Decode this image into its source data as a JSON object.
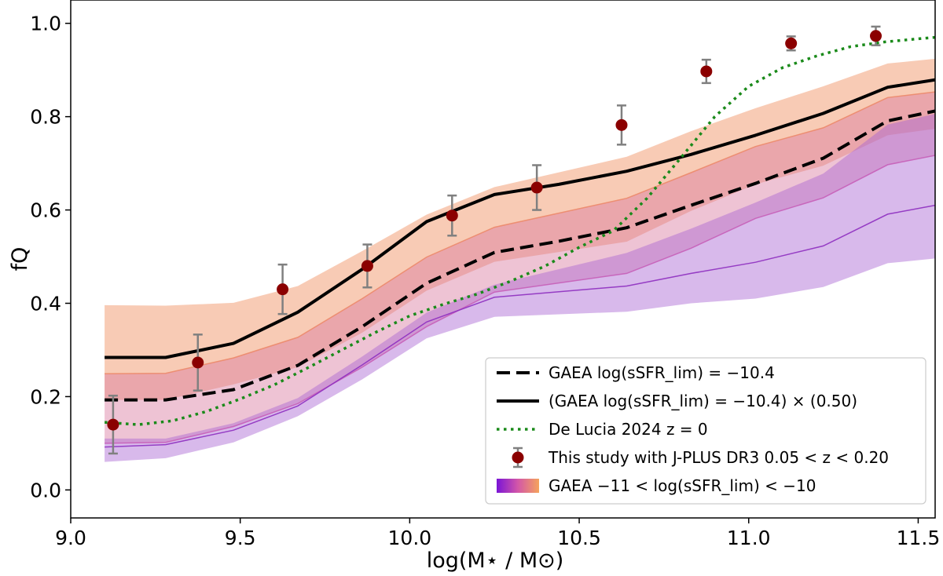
{
  "chart_data": {
    "type": "line",
    "xlabel": "log(M⋆ / M⊙)",
    "ylabel": "fQ",
    "xlim": [
      9.0,
      11.55
    ],
    "ylim": [
      -0.06,
      1.05
    ],
    "xticks": [
      "9.0",
      "9.5",
      "10.0",
      "10.5",
      "11.0",
      "11.5"
    ],
    "xtick_values": [
      9.0,
      9.5,
      10.0,
      10.5,
      11.0,
      11.5
    ],
    "yticks": [
      "0.0",
      "0.2",
      "0.4",
      "0.6",
      "0.8",
      "1.0"
    ],
    "ytick_values": [
      0.0,
      0.2,
      0.4,
      0.6,
      0.8,
      1.0
    ],
    "grid": false,
    "legend_position": "lower-right",
    "bands": [
      {
        "name": "orange",
        "color": "#f08c5a",
        "opacity": 0.45,
        "x": [
          9.1,
          9.28,
          9.48,
          9.67,
          9.86,
          10.05,
          10.25,
          10.64,
          10.83,
          11.02,
          11.22,
          11.41,
          11.55
        ],
        "upper": [
          0.396,
          0.395,
          0.401,
          0.437,
          0.512,
          0.59,
          0.649,
          0.714,
          0.769,
          0.818,
          0.865,
          0.914,
          0.924
        ],
        "lower": [
          0.193,
          0.193,
          0.226,
          0.263,
          0.337,
          0.427,
          0.489,
          0.532,
          0.598,
          0.655,
          0.695,
          0.76,
          0.774
        ]
      },
      {
        "name": "pink",
        "color": "#d97aa0",
        "opacity": 0.45,
        "x": [
          9.1,
          9.28,
          9.48,
          9.67,
          9.86,
          10.05,
          10.25,
          10.64,
          10.83,
          11.02,
          11.22,
          11.41,
          11.55
        ],
        "upper": [
          0.249,
          0.25,
          0.283,
          0.327,
          0.41,
          0.499,
          0.563,
          0.625,
          0.68,
          0.736,
          0.776,
          0.841,
          0.853
        ],
        "lower": [
          0.1,
          0.102,
          0.136,
          0.185,
          0.263,
          0.35,
          0.424,
          0.464,
          0.518,
          0.582,
          0.626,
          0.697,
          0.717
        ]
      },
      {
        "name": "purple",
        "color": "#a864d2",
        "opacity": 0.45,
        "x": [
          9.1,
          9.28,
          9.48,
          9.67,
          9.86,
          10.05,
          10.25,
          10.64,
          10.83,
          11.02,
          11.22,
          11.41,
          11.55
        ],
        "upper": [
          0.11,
          0.11,
          0.143,
          0.197,
          0.286,
          0.38,
          0.44,
          0.508,
          0.56,
          0.616,
          0.678,
          0.783,
          0.806
        ],
        "lower": [
          0.06,
          0.068,
          0.102,
          0.158,
          0.237,
          0.325,
          0.371,
          0.382,
          0.4,
          0.41,
          0.435,
          0.486,
          0.496
        ]
      }
    ],
    "band_lines": [
      {
        "color": "#ec8a6a",
        "x": [
          9.1,
          9.28,
          9.48,
          9.67,
          9.86,
          10.05,
          10.25,
          10.64,
          10.83,
          11.02,
          11.22,
          11.41,
          11.55
        ],
        "y": [
          0.249,
          0.25,
          0.283,
          0.327,
          0.41,
          0.499,
          0.563,
          0.625,
          0.68,
          0.736,
          0.776,
          0.841,
          0.853
        ]
      },
      {
        "color": "#c75fb8",
        "x": [
          9.1,
          9.28,
          9.48,
          9.67,
          9.86,
          10.05,
          10.25,
          10.64,
          10.83,
          11.02,
          11.22,
          11.41,
          11.55
        ],
        "y": [
          0.1,
          0.102,
          0.136,
          0.185,
          0.263,
          0.35,
          0.424,
          0.464,
          0.518,
          0.582,
          0.626,
          0.697,
          0.717
        ]
      },
      {
        "color": "#8e2fc0",
        "x": [
          9.1,
          9.28,
          9.48,
          9.67,
          9.86,
          10.05,
          10.25,
          10.64,
          10.83,
          11.02,
          11.22,
          11.41,
          11.55
        ],
        "y": [
          0.092,
          0.097,
          0.128,
          0.18,
          0.268,
          0.36,
          0.413,
          0.437,
          0.464,
          0.488,
          0.523,
          0.591,
          0.61
        ]
      }
    ],
    "series": [
      {
        "style": "dashed",
        "color": "#000000",
        "x": [
          9.1,
          9.28,
          9.48,
          9.67,
          9.86,
          10.05,
          10.25,
          10.44,
          10.64,
          10.83,
          11.02,
          11.22,
          11.41,
          11.55
        ],
        "y": [
          0.193,
          0.193,
          0.215,
          0.267,
          0.35,
          0.443,
          0.509,
          0.533,
          0.562,
          0.61,
          0.657,
          0.711,
          0.791,
          0.812
        ]
      },
      {
        "style": "solid",
        "color": "#000000",
        "x": [
          9.1,
          9.28,
          9.48,
          9.67,
          9.86,
          10.05,
          10.25,
          10.44,
          10.64,
          10.83,
          11.02,
          11.22,
          11.41,
          11.55
        ],
        "y": [
          0.284,
          0.284,
          0.314,
          0.381,
          0.473,
          0.575,
          0.633,
          0.655,
          0.683,
          0.719,
          0.76,
          0.807,
          0.863,
          0.879
        ]
      },
      {
        "style": "dotted",
        "color": "#1a8a1a",
        "x": [
          9.1,
          9.2,
          9.3,
          9.4,
          9.5,
          9.6,
          9.7,
          9.8,
          9.9,
          10.0,
          10.1,
          10.2,
          10.3,
          10.4,
          10.5,
          10.6,
          10.7,
          10.8,
          10.9,
          11.0,
          11.1,
          11.2,
          11.3,
          11.4,
          11.5,
          11.55
        ],
        "y": [
          0.145,
          0.14,
          0.148,
          0.168,
          0.195,
          0.225,
          0.262,
          0.3,
          0.338,
          0.373,
          0.398,
          0.42,
          0.448,
          0.48,
          0.52,
          0.555,
          0.625,
          0.712,
          0.8,
          0.865,
          0.905,
          0.93,
          0.95,
          0.96,
          0.967,
          0.97
        ]
      }
    ],
    "points": {
      "color": "#8b0000",
      "errcolor": "#808080",
      "x": [
        9.125,
        9.375,
        9.625,
        9.875,
        10.125,
        10.375,
        10.625,
        10.875,
        11.125,
        11.375
      ],
      "y": [
        0.14,
        0.273,
        0.43,
        0.48,
        0.588,
        0.648,
        0.782,
        0.897,
        0.957,
        0.973
      ],
      "yerr": [
        0.062,
        0.06,
        0.053,
        0.046,
        0.043,
        0.048,
        0.042,
        0.025,
        0.015,
        0.02
      ]
    },
    "legend": [
      {
        "kind": "dashed",
        "label": "GAEA log(sSFR_lim) = −10.4"
      },
      {
        "kind": "solid",
        "label": "(GAEA log(sSFR_lim) = −10.4) × (0.50)"
      },
      {
        "kind": "dotted",
        "label": "De Lucia 2024 z = 0"
      },
      {
        "kind": "point",
        "label": "This study with J-PLUS DR3 0.05 < z < 0.20"
      },
      {
        "kind": "gradient",
        "label": "GAEA −11 < log(sSFR_lim) < −10"
      }
    ]
  }
}
